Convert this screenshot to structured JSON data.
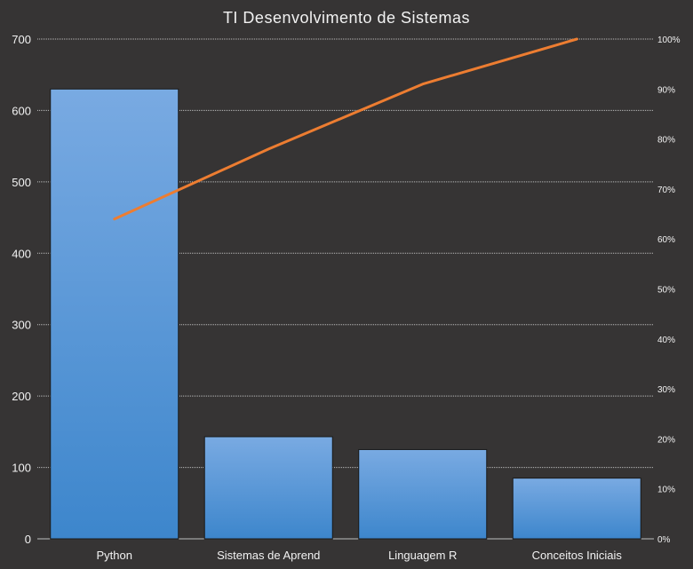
{
  "chart_data": {
    "type": "bar",
    "title": "TI Desenvolvimento  de Sistemas",
    "categories": [
      "Python",
      "Sistemas de Aprend",
      "Linguagem R",
      "Conceitos Iniciais"
    ],
    "series": [
      {
        "type": "bar",
        "values": [
          630,
          143,
          125,
          85
        ],
        "color": "#4a90d9"
      },
      {
        "type": "line",
        "axis": "right",
        "values": [
          64,
          78,
          91,
          100
        ],
        "color": "#ed7d31"
      }
    ],
    "ylim": [
      0,
      700
    ],
    "yticks": [
      0,
      100,
      200,
      300,
      400,
      500,
      600,
      700
    ],
    "y2lim": [
      0,
      100
    ],
    "y2ticks": [
      "0%",
      "10%",
      "20%",
      "30%",
      "40%",
      "50%",
      "60%",
      "70%",
      "80%",
      "90%",
      "100%"
    ],
    "grid": true,
    "grid_style": "dotted"
  },
  "colors": {
    "background": "#363434",
    "bar_top": "#79aae2",
    "bar_bottom": "#3d86cc",
    "line": "#ed7d31",
    "text": "#f2f2f2"
  }
}
